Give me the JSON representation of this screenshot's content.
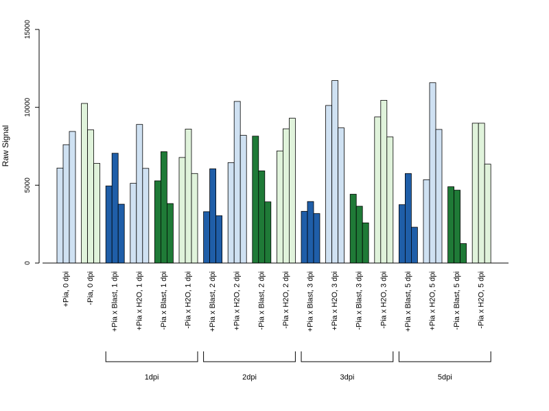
{
  "chart_data": {
    "type": "bar",
    "ylabel": "Raw Signal",
    "ylim": [
      0,
      15000
    ],
    "y_ticks": [
      0,
      5000,
      10000,
      15000
    ],
    "categories": [
      "+Pia, 0 dpi",
      "-Pia, 0 dpi",
      "+Pia x Blast, 1 dpi",
      "+Pia x H2O, 1 dpi",
      "-Pia x Blast, 1 dpi",
      "-Pia x H2O, 1 dpi",
      "+Pia x Blast, 2 dpi",
      "+Pia x H2O, 2 dpi",
      "-Pia x Blast, 2 dpi",
      "-Pia x H2O, 2 dpi",
      "+Pia x Blast, 3 dpi",
      "+Pia x H2O, 3 dpi",
      "-Pia x Blast, 3 dpi",
      "-Pia x H2O, 3 dpi",
      "+Pia x Blast, 5 dpi",
      "+Pia x H2O, 5 dpi",
      "-Pia x Blast, 5 dpi",
      "-Pia x H2O, 5 dpi"
    ],
    "category_colors": [
      "#cfe1f2",
      "#e0f3db",
      "#1f5ea8",
      "#cfe1f2",
      "#1f7a37",
      "#e0f3db",
      "#1f5ea8",
      "#cfe1f2",
      "#1f7a37",
      "#e0f3db",
      "#1f5ea8",
      "#cfe1f2",
      "#1f7a37",
      "#e0f3db",
      "#1f5ea8",
      "#cfe1f2",
      "#1f7a37",
      "#e0f3db"
    ],
    "values": [
      [
        6100,
        7600,
        8450
      ],
      [
        10250,
        8550,
        6400
      ],
      [
        4950,
        7050,
        3780
      ],
      [
        5120,
        8900,
        6080
      ],
      [
        5280,
        7150,
        3820
      ],
      [
        6780,
        8600,
        5750
      ],
      [
        3300,
        6050,
        3040
      ],
      [
        6450,
        10380,
        8200
      ],
      [
        8150,
        5920,
        3930
      ],
      [
        7200,
        8620,
        9300
      ],
      [
        3320,
        3950,
        3180
      ],
      [
        10120,
        11720,
        8680
      ],
      [
        4420,
        3650,
        2580
      ],
      [
        9380,
        10450,
        8100
      ],
      [
        3750,
        5750,
        2300
      ],
      [
        5350,
        11580,
        8580
      ],
      [
        4900,
        4680,
        1250
      ],
      [
        8980,
        8980,
        6350
      ]
    ],
    "groups": [
      {
        "label": "1dpi",
        "start": 2,
        "end": 5
      },
      {
        "label": "2dpi",
        "start": 6,
        "end": 9
      },
      {
        "label": "3dpi",
        "start": 10,
        "end": 13
      },
      {
        "label": "5dpi",
        "start": 14,
        "end": 17
      }
    ],
    "grid": false,
    "legend": "none"
  }
}
